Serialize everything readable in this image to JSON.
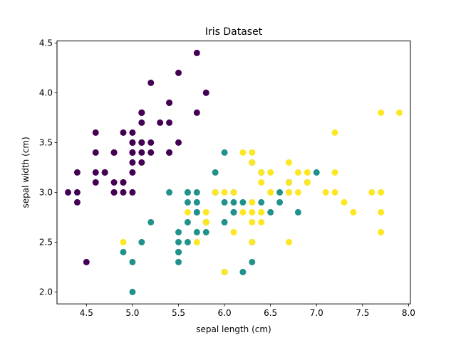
{
  "chart_data": {
    "type": "scatter",
    "title": "Iris Dataset",
    "xlabel": "sepal length (cm)",
    "ylabel": "sepal width (cm)",
    "xlim": [
      4.18,
      8.02
    ],
    "ylim": [
      1.88,
      4.52
    ],
    "xticks": [
      "4.5",
      "5.0",
      "5.5",
      "6.0",
      "6.5",
      "7.0",
      "7.5",
      "8.0"
    ],
    "yticks": [
      "2.0",
      "2.5",
      "3.0",
      "3.5",
      "4.0",
      "4.5"
    ],
    "grid": false,
    "legend": "none",
    "series": [
      {
        "color": "#440154",
        "points": [
          [
            5.1,
            3.5
          ],
          [
            4.9,
            3.0
          ],
          [
            4.7,
            3.2
          ],
          [
            4.6,
            3.1
          ],
          [
            5.0,
            3.6
          ],
          [
            5.4,
            3.9
          ],
          [
            4.6,
            3.4
          ],
          [
            5.0,
            3.4
          ],
          [
            4.4,
            2.9
          ],
          [
            4.9,
            3.1
          ],
          [
            5.4,
            3.7
          ],
          [
            4.8,
            3.4
          ],
          [
            4.8,
            3.0
          ],
          [
            4.3,
            3.0
          ],
          [
            5.8,
            4.0
          ],
          [
            5.7,
            4.4
          ],
          [
            5.4,
            3.9
          ],
          [
            5.1,
            3.5
          ],
          [
            5.7,
            3.8
          ],
          [
            5.1,
            3.8
          ],
          [
            5.4,
            3.4
          ],
          [
            5.1,
            3.7
          ],
          [
            4.6,
            3.6
          ],
          [
            5.1,
            3.3
          ],
          [
            4.8,
            3.4
          ],
          [
            5.0,
            3.0
          ],
          [
            5.0,
            3.4
          ],
          [
            5.2,
            3.5
          ],
          [
            5.2,
            3.4
          ],
          [
            4.7,
            3.2
          ],
          [
            4.8,
            3.1
          ],
          [
            5.4,
            3.4
          ],
          [
            5.2,
            4.1
          ],
          [
            5.5,
            4.2
          ],
          [
            4.9,
            3.1
          ],
          [
            5.0,
            3.2
          ],
          [
            5.5,
            3.5
          ],
          [
            4.9,
            3.6
          ],
          [
            4.4,
            3.0
          ],
          [
            5.1,
            3.4
          ],
          [
            5.0,
            3.5
          ],
          [
            4.5,
            2.3
          ],
          [
            4.4,
            3.2
          ],
          [
            5.0,
            3.5
          ],
          [
            5.1,
            3.8
          ],
          [
            4.8,
            3.0
          ],
          [
            5.1,
            3.8
          ],
          [
            4.6,
            3.2
          ],
          [
            5.3,
            3.7
          ],
          [
            5.0,
            3.3
          ]
        ]
      },
      {
        "color": "#21918c",
        "points": [
          [
            7.0,
            3.2
          ],
          [
            6.4,
            3.2
          ],
          [
            6.9,
            3.1
          ],
          [
            5.5,
            2.3
          ],
          [
            6.5,
            2.8
          ],
          [
            5.7,
            2.8
          ],
          [
            6.3,
            3.3
          ],
          [
            4.9,
            2.4
          ],
          [
            6.6,
            2.9
          ],
          [
            5.2,
            2.7
          ],
          [
            5.0,
            2.0
          ],
          [
            5.9,
            3.0
          ],
          [
            6.0,
            2.2
          ],
          [
            6.1,
            2.9
          ],
          [
            5.6,
            2.9
          ],
          [
            6.7,
            3.1
          ],
          [
            5.6,
            3.0
          ],
          [
            5.8,
            2.7
          ],
          [
            6.2,
            2.2
          ],
          [
            5.6,
            2.5
          ],
          [
            5.9,
            3.2
          ],
          [
            6.1,
            2.8
          ],
          [
            6.3,
            2.5
          ],
          [
            6.1,
            2.8
          ],
          [
            6.4,
            2.9
          ],
          [
            6.6,
            3.0
          ],
          [
            6.8,
            2.8
          ],
          [
            6.7,
            3.0
          ],
          [
            6.0,
            2.9
          ],
          [
            5.7,
            2.6
          ],
          [
            5.5,
            2.4
          ],
          [
            5.5,
            2.4
          ],
          [
            5.8,
            2.7
          ],
          [
            6.0,
            2.7
          ],
          [
            5.4,
            3.0
          ],
          [
            6.0,
            3.4
          ],
          [
            6.7,
            3.1
          ],
          [
            6.3,
            2.3
          ],
          [
            5.6,
            3.0
          ],
          [
            5.5,
            2.5
          ],
          [
            5.5,
            2.6
          ],
          [
            6.1,
            3.0
          ],
          [
            5.8,
            2.6
          ],
          [
            5.0,
            2.3
          ],
          [
            5.6,
            2.7
          ],
          [
            5.7,
            3.0
          ],
          [
            5.7,
            2.9
          ],
          [
            6.2,
            2.9
          ],
          [
            5.1,
            2.5
          ],
          [
            5.7,
            2.8
          ]
        ]
      },
      {
        "color": "#fde725",
        "points": [
          [
            6.3,
            3.3
          ],
          [
            5.8,
            2.7
          ],
          [
            7.1,
            3.0
          ],
          [
            6.3,
            2.9
          ],
          [
            6.5,
            3.0
          ],
          [
            7.6,
            3.0
          ],
          [
            4.9,
            2.5
          ],
          [
            7.3,
            2.9
          ],
          [
            6.7,
            2.5
          ],
          [
            7.2,
            3.6
          ],
          [
            6.5,
            3.2
          ],
          [
            6.4,
            2.7
          ],
          [
            6.8,
            3.0
          ],
          [
            5.7,
            2.5
          ],
          [
            5.8,
            2.8
          ],
          [
            6.4,
            3.2
          ],
          [
            6.5,
            3.0
          ],
          [
            7.7,
            3.8
          ],
          [
            7.7,
            2.6
          ],
          [
            6.0,
            2.2
          ],
          [
            6.9,
            3.2
          ],
          [
            5.6,
            2.8
          ],
          [
            7.7,
            2.8
          ],
          [
            6.3,
            2.7
          ],
          [
            6.7,
            3.3
          ],
          [
            7.2,
            3.2
          ],
          [
            6.2,
            2.8
          ],
          [
            6.1,
            3.0
          ],
          [
            6.4,
            2.8
          ],
          [
            7.2,
            3.0
          ],
          [
            7.4,
            2.8
          ],
          [
            7.9,
            3.8
          ],
          [
            6.4,
            2.8
          ],
          [
            6.3,
            2.8
          ],
          [
            6.1,
            2.6
          ],
          [
            7.7,
            3.0
          ],
          [
            6.3,
            3.4
          ],
          [
            6.4,
            3.1
          ],
          [
            6.0,
            3.0
          ],
          [
            6.9,
            3.1
          ],
          [
            6.7,
            3.1
          ],
          [
            6.9,
            3.1
          ],
          [
            5.8,
            2.7
          ],
          [
            6.8,
            3.2
          ],
          [
            6.7,
            3.3
          ],
          [
            6.7,
            3.0
          ],
          [
            6.3,
            2.5
          ],
          [
            6.5,
            3.0
          ],
          [
            6.2,
            3.4
          ],
          [
            5.9,
            3.0
          ]
        ]
      }
    ]
  }
}
